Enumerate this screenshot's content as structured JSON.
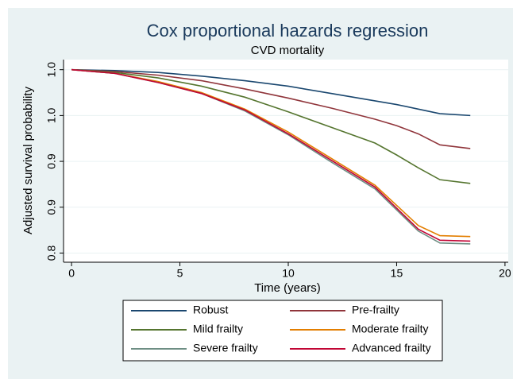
{
  "chart_data": {
    "type": "line",
    "title": "Cox proportional hazards regression",
    "subtitle": "CVD mortality",
    "x_label": "Time (years)",
    "y_label": "Adjusted survival probability",
    "x": [
      0,
      2,
      4,
      6,
      8,
      10,
      12,
      14,
      15,
      16,
      17,
      18.4
    ],
    "series": [
      {
        "name": "Robust",
        "color": "#1a476f",
        "values": [
          1,
          0.999,
          0.997,
          0.993,
          0.988,
          0.982,
          0.974,
          0.966,
          0.962,
          0.957,
          0.952,
          0.95
        ]
      },
      {
        "name": "Pre-frailty",
        "color": "#90353b",
        "values": [
          1,
          0.998,
          0.994,
          0.988,
          0.979,
          0.969,
          0.958,
          0.946,
          0.939,
          0.93,
          0.918,
          0.914
        ]
      },
      {
        "name": "Mild frailty",
        "color": "#55752f",
        "values": [
          1,
          0.997,
          0.991,
          0.982,
          0.97,
          0.954,
          0.937,
          0.92,
          0.907,
          0.893,
          0.88,
          0.876
        ]
      },
      {
        "name": "Moderate frailty",
        "color": "#e37e00",
        "values": [
          1,
          0.996,
          0.987,
          0.975,
          0.957,
          0.932,
          0.903,
          0.874,
          0.852,
          0.83,
          0.819,
          0.818
        ]
      },
      {
        "name": "Severe frailty",
        "color": "#6e8e84",
        "values": [
          1,
          0.996,
          0.986,
          0.974,
          0.955,
          0.929,
          0.899,
          0.87,
          0.847,
          0.824,
          0.811,
          0.81
        ]
      },
      {
        "name": "Advanced frailty",
        "color": "#c10534",
        "values": [
          1,
          0.996,
          0.986,
          0.974,
          0.956,
          0.93,
          0.901,
          0.872,
          0.849,
          0.826,
          0.814,
          0.813
        ]
      }
    ],
    "xlim": [
      -0.37,
      20.15
    ],
    "ylim": [
      0.79,
      1.011
    ],
    "xticks": [
      0,
      5,
      10,
      15,
      20
    ],
    "yticks": [
      {
        "value": 1.0,
        "label": "1.0"
      },
      {
        "value": 0.95,
        "label": "1.0"
      },
      0.9,
      {
        "value": 0.85,
        "label": "0.9"
      },
      0.8
    ],
    "grid": true
  }
}
